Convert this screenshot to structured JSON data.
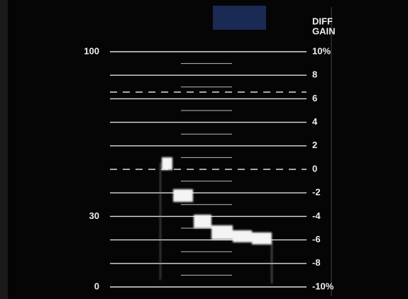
{
  "header": {
    "lines": [
      "DIFF",
      "GAIN"
    ]
  },
  "left_scale": [
    "100",
    "30",
    "0"
  ],
  "right_scale": [
    "10%",
    "8",
    "6",
    "4",
    "2",
    "0",
    "-2",
    "-4",
    "-6",
    "-8",
    "-10%"
  ]
}
